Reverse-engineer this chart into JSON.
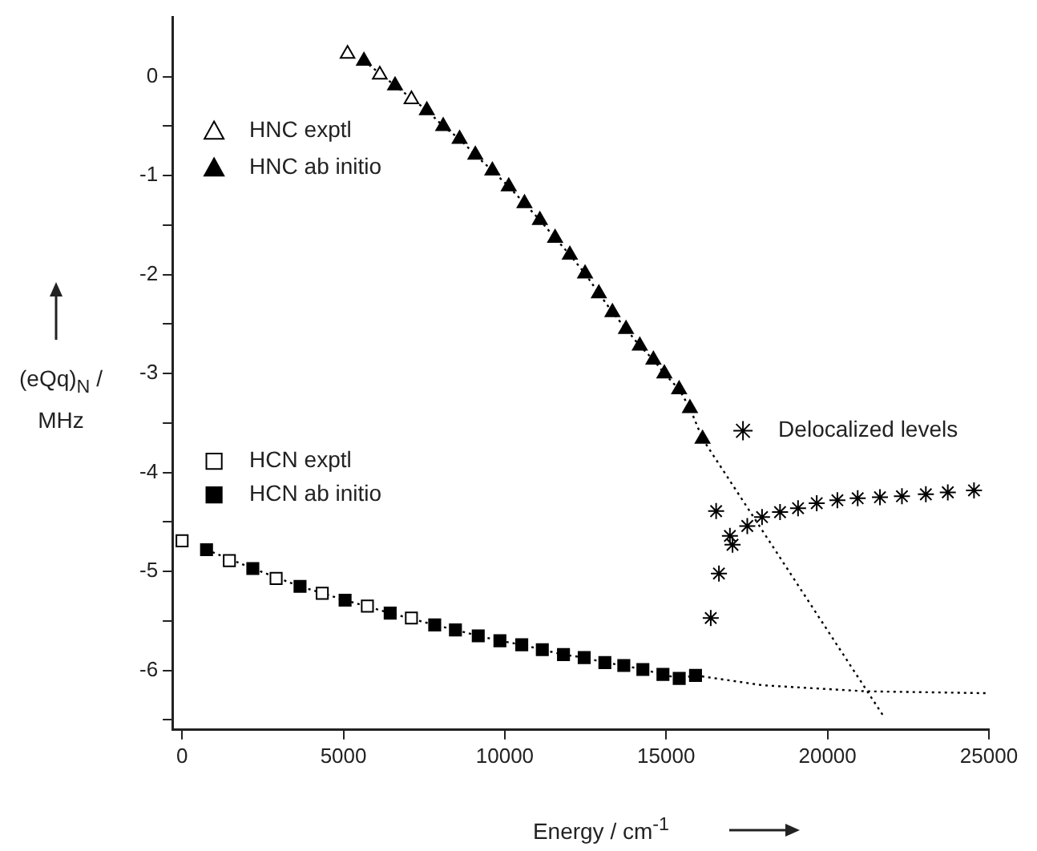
{
  "chart_data": {
    "type": "scatter",
    "xlabel": "Energy / cm$^{-1}$",
    "ylabel": "(eQq)$_{N}$ / MHz",
    "xlim": [
      -300,
      25000
    ],
    "xticks": [
      0,
      5000,
      10000,
      15000,
      20000,
      25000
    ],
    "ylim": [
      -6.6,
      0.6
    ],
    "yticks": [
      {
        "value": -6.5,
        "label": null
      },
      -6,
      {
        "value": -5.5,
        "label": null
      },
      -5,
      {
        "value": -4.5,
        "label": null
      },
      -4,
      {
        "value": -3.5,
        "label": null
      },
      -3,
      {
        "value": -2.5,
        "label": null
      },
      -2,
      {
        "value": -1.5,
        "label": null
      },
      -1,
      {
        "value": -0.5,
        "label": null
      },
      0
    ],
    "grid": false,
    "legend": "top left",
    "series": [
      {
        "name": "HNC exptl",
        "type": "scatter",
        "marker": "triangle",
        "color": "#000000",
        "x": [
          5127,
          6127,
          7107
        ],
        "values": [
          0.23,
          0.02,
          -0.23
        ]
      },
      {
        "name": "HNC ab initio",
        "type": "line",
        "line_style": "dotted",
        "marker": "triangle",
        "color": "#000000",
        "x": [
          5635,
          6599,
          7584,
          8091,
          8599,
          9086,
          9614,
          10122,
          10609,
          11086,
          11558,
          12015,
          12487,
          12914,
          13335,
          13756,
          14183,
          14604,
          14944,
          15401,
          15736,
          16127
        ],
        "values": [
          0.16,
          -0.09,
          -0.34,
          -0.5,
          -0.63,
          -0.79,
          -0.95,
          -1.11,
          -1.28,
          -1.45,
          -1.63,
          -1.8,
          -1.99,
          -2.19,
          -2.38,
          -2.55,
          -2.72,
          -2.86,
          -3.0,
          -3.16,
          -3.35,
          -3.66
        ]
      },
      {
        "name": "HCN exptl",
        "type": "scatter",
        "marker": "square",
        "color": "#000000",
        "x": [
          0,
          1465,
          2914,
          4343,
          5742,
          7106
        ],
        "values": [
          -4.69,
          -4.89,
          -5.07,
          -5.22,
          -5.35,
          -5.47
        ]
      },
      {
        "name": "HCN ab initio",
        "type": "line",
        "line_style": "dotted",
        "marker": "square",
        "color": "#000000",
        "x": [
          758,
          2192,
          3655,
          5051,
          6448,
          7828,
          8470,
          9177,
          9848,
          10525,
          11162,
          11818,
          12460,
          13100,
          13687,
          14278,
          14900,
          15404,
          15909
        ],
        "values": [
          -4.78,
          -4.97,
          -5.15,
          -5.29,
          -5.42,
          -5.54,
          -5.59,
          -5.65,
          -5.7,
          -5.74,
          -5.79,
          -5.84,
          -5.87,
          -5.92,
          -5.95,
          -5.99,
          -6.04,
          -6.08,
          -6.05
        ]
      },
      {
        "name": "Delocalized levels",
        "type": "scatter",
        "marker": "cross",
        "color": "#000000",
        "x": [
          16381,
          16548,
          16635,
          16975,
          17056,
          17513,
          17970,
          18528,
          19086,
          19665,
          20305,
          20934,
          21624,
          22305,
          23046,
          23726,
          24538
        ],
        "values": [
          -5.47,
          -4.39,
          -5.02,
          -4.64,
          -4.73,
          -4.54,
          -4.45,
          -4.4,
          -4.36,
          -4.31,
          -4.28,
          -4.26,
          -4.25,
          -4.24,
          -4.22,
          -4.2,
          -4.18
        ]
      },
      {
        "type": "line",
        "line_style": "dotted",
        "marker": "none",
        "color": "#000000",
        "x": [
          16127,
          21750
        ],
        "values": [
          -3.66,
          -6.47
        ]
      },
      {
        "type": "line",
        "line_style": "dotted",
        "marker": "none",
        "color": "#000000",
        "x": [
          15909,
          18000,
          21150,
          24960
        ],
        "values": [
          -6.05,
          -6.15,
          -6.21,
          -6.23
        ]
      }
    ]
  }
}
